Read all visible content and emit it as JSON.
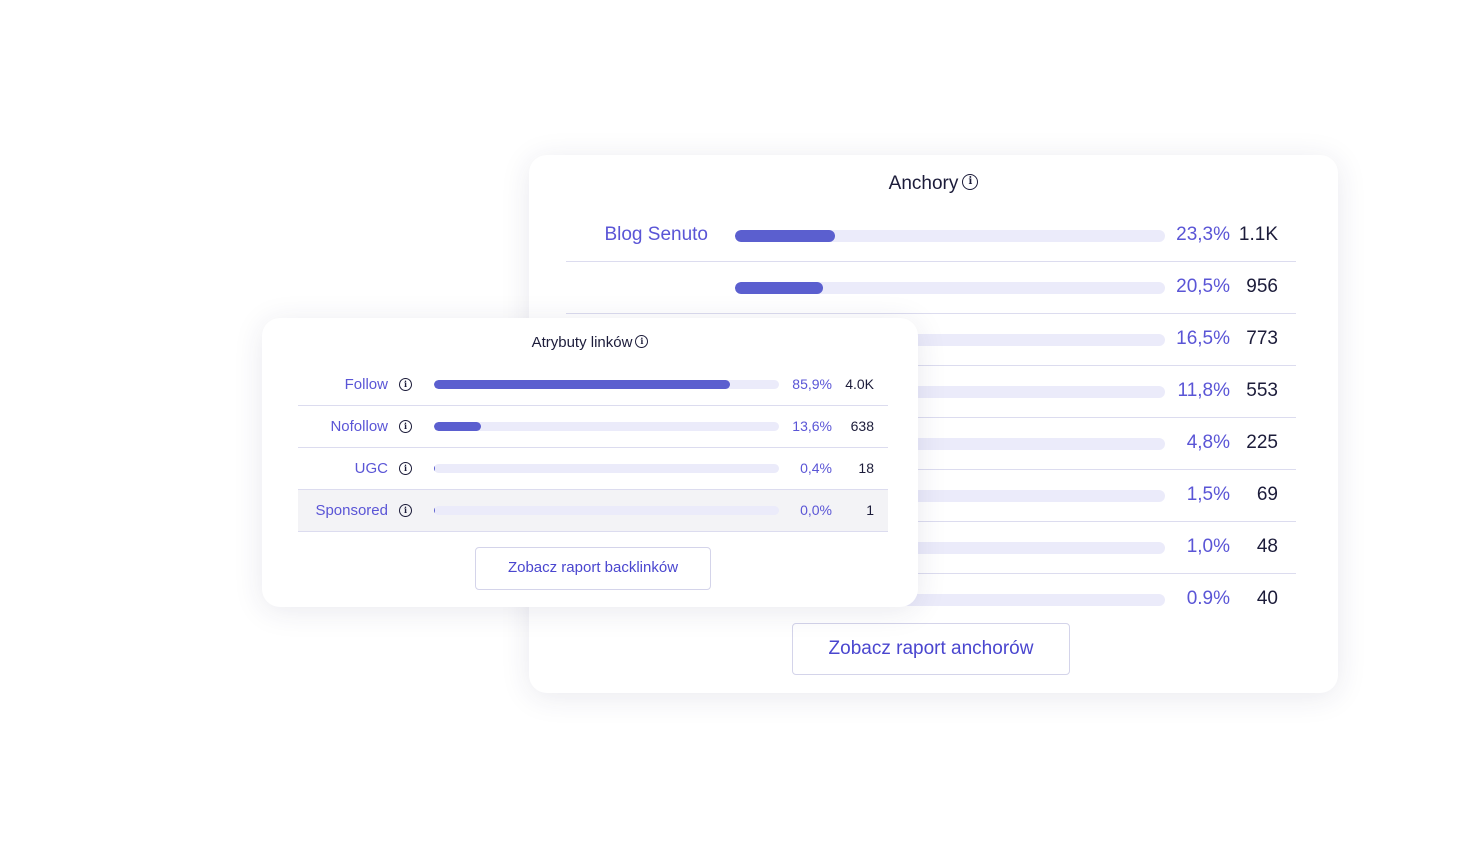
{
  "anchors": {
    "title": "Anchory",
    "button_label": "Zobacz raport anchorów",
    "rows": [
      {
        "label": "Blog Senuto",
        "percent": 23.3,
        "percent_label": "23,3%",
        "count": "1.1K"
      },
      {
        "label": "",
        "percent": 20.5,
        "percent_label": "20,5%",
        "count": "956"
      },
      {
        "label": "",
        "percent": 16.5,
        "percent_label": "16,5%",
        "count": "773"
      },
      {
        "label": "",
        "percent": 11.8,
        "percent_label": "11,8%",
        "count": "553"
      },
      {
        "label": "",
        "percent": 4.8,
        "percent_label": "4,8%",
        "count": "225"
      },
      {
        "label": "",
        "percent": 1.5,
        "percent_label": "1,5%",
        "count": "69"
      },
      {
        "label": "",
        "percent": 1.0,
        "percent_label": "1,0%",
        "count": "48"
      },
      {
        "label": "",
        "percent": 0.9,
        "percent_label": "0.9%",
        "count": "40"
      }
    ]
  },
  "link_attributes": {
    "title": "Atrybuty linków",
    "button_label": "Zobacz raport backlinków",
    "rows": [
      {
        "label": "Follow",
        "percent": 85.9,
        "percent_label": "85,9%",
        "count": "4.0K"
      },
      {
        "label": "Nofollow",
        "percent": 13.6,
        "percent_label": "13,6%",
        "count": "638"
      },
      {
        "label": "UGC",
        "percent": 0.4,
        "percent_label": "0,4%",
        "count": "18"
      },
      {
        "label": "Sponsored",
        "percent": 0.0,
        "percent_label": "0,0%",
        "count": "1",
        "highlighted": true
      }
    ]
  },
  "colors": {
    "accent": "#5b5fcf",
    "track": "#ebebfa",
    "text": "#1c1c3a",
    "label": "#5a55d6"
  }
}
